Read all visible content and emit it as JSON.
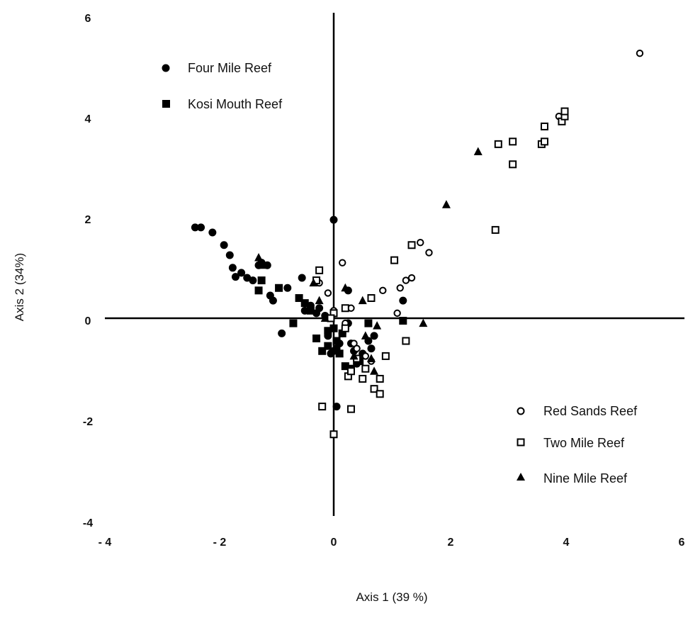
{
  "chart_data": {
    "type": "scatter",
    "xlabel": "Axis 1 (39 %)",
    "ylabel": "Axis 2 (34%)",
    "xlim": [
      -4,
      6
    ],
    "ylim": [
      -4,
      6
    ],
    "x_ticks": [
      "- 4",
      "- 2",
      "0",
      "2",
      "4",
      "6"
    ],
    "y_ticks": [
      "6",
      "4",
      "2",
      "0",
      "-2",
      "-4"
    ],
    "legend": {
      "top_left": [
        "Four Mile Reef",
        "Kosi Mouth Reef"
      ],
      "bottom_right": [
        "Red Sands Reef",
        "Two Mile Reef",
        "Nine Mile Reef"
      ]
    },
    "series": [
      {
        "name": "Four Mile Reef",
        "marker": "filled-circle",
        "points": [
          [
            -2.4,
            1.8
          ],
          [
            -2.3,
            1.8
          ],
          [
            -2.1,
            1.7
          ],
          [
            -1.9,
            1.45
          ],
          [
            -1.8,
            1.25
          ],
          [
            -1.75,
            1.0
          ],
          [
            -1.7,
            0.82
          ],
          [
            -1.6,
            0.9
          ],
          [
            -1.5,
            0.8
          ],
          [
            -1.4,
            0.75
          ],
          [
            -1.3,
            1.05
          ],
          [
            -1.25,
            1.1
          ],
          [
            -1.15,
            1.05
          ],
          [
            -1.1,
            0.45
          ],
          [
            -1.05,
            0.35
          ],
          [
            -0.9,
            -0.3
          ],
          [
            -0.8,
            0.6
          ],
          [
            -0.55,
            0.8
          ],
          [
            -0.5,
            0.15
          ],
          [
            -0.4,
            0.25
          ],
          [
            -0.3,
            0.1
          ],
          [
            -0.25,
            0.2
          ],
          [
            -0.15,
            0.05
          ],
          [
            -0.1,
            -0.35
          ],
          [
            -0.05,
            -0.7
          ],
          [
            0.0,
            -0.65
          ],
          [
            0.0,
            1.95
          ],
          [
            0.05,
            -0.6
          ],
          [
            0.1,
            -0.5
          ],
          [
            0.15,
            -0.3
          ],
          [
            0.2,
            -0.2
          ],
          [
            0.25,
            -0.1
          ],
          [
            0.3,
            -0.5
          ],
          [
            0.35,
            -0.65
          ],
          [
            0.4,
            -0.9
          ],
          [
            0.5,
            -0.7
          ],
          [
            0.6,
            -0.45
          ],
          [
            0.65,
            -0.6
          ],
          [
            0.7,
            -0.35
          ],
          [
            0.05,
            -1.75
          ],
          [
            0.25,
            0.55
          ],
          [
            1.2,
            0.35
          ]
        ]
      },
      {
        "name": "Kosi Mouth Reef",
        "marker": "filled-square",
        "points": [
          [
            -1.3,
            0.55
          ],
          [
            -1.25,
            0.75
          ],
          [
            -0.95,
            0.6
          ],
          [
            -0.7,
            -0.1
          ],
          [
            -0.6,
            0.4
          ],
          [
            -0.5,
            0.3
          ],
          [
            -0.4,
            0.15
          ],
          [
            -0.3,
            -0.4
          ],
          [
            -0.2,
            -0.65
          ],
          [
            -0.1,
            -0.25
          ],
          [
            0.0,
            -0.2
          ],
          [
            0.05,
            -0.45
          ],
          [
            0.1,
            -0.7
          ],
          [
            0.2,
            -0.95
          ],
          [
            0.3,
            -1.0
          ],
          [
            0.45,
            -0.85
          ],
          [
            0.6,
            -0.1
          ],
          [
            1.2,
            -0.05
          ],
          [
            -0.1,
            -0.55
          ],
          [
            0.15,
            -0.3
          ]
        ]
      },
      {
        "name": "Red Sands Reef",
        "marker": "open-circle",
        "points": [
          [
            5.3,
            5.25
          ],
          [
            3.9,
            4.0
          ],
          [
            -0.25,
            0.7
          ],
          [
            -0.1,
            0.5
          ],
          [
            0.0,
            0.15
          ],
          [
            0.15,
            1.1
          ],
          [
            0.2,
            -0.1
          ],
          [
            0.3,
            0.2
          ],
          [
            0.35,
            -0.5
          ],
          [
            0.4,
            -0.6
          ],
          [
            0.55,
            -0.75
          ],
          [
            0.65,
            -0.85
          ],
          [
            0.85,
            0.55
          ],
          [
            1.1,
            0.1
          ],
          [
            1.15,
            0.6
          ],
          [
            1.25,
            0.75
          ],
          [
            1.35,
            0.8
          ],
          [
            1.5,
            1.5
          ],
          [
            1.65,
            1.3
          ]
        ]
      },
      {
        "name": "Two Mile Reef",
        "marker": "open-square",
        "points": [
          [
            -0.25,
            0.95
          ],
          [
            -0.3,
            0.75
          ],
          [
            -0.2,
            -1.75
          ],
          [
            0.0,
            -2.3
          ],
          [
            0.0,
            0.1
          ],
          [
            0.2,
            0.2
          ],
          [
            0.2,
            -0.2
          ],
          [
            0.25,
            -1.15
          ],
          [
            0.3,
            -1.8
          ],
          [
            0.3,
            -1.05
          ],
          [
            0.4,
            -0.8
          ],
          [
            0.5,
            -1.2
          ],
          [
            0.55,
            -1.0
          ],
          [
            0.65,
            0.4
          ],
          [
            0.7,
            -1.4
          ],
          [
            0.8,
            -1.2
          ],
          [
            0.8,
            -1.5
          ],
          [
            0.9,
            -0.75
          ],
          [
            1.05,
            1.15
          ],
          [
            1.25,
            -0.45
          ],
          [
            1.35,
            1.45
          ],
          [
            2.8,
            1.75
          ],
          [
            2.85,
            3.45
          ],
          [
            3.1,
            3.5
          ],
          [
            3.1,
            3.05
          ],
          [
            3.6,
            3.45
          ],
          [
            3.65,
            3.5
          ],
          [
            3.65,
            3.8
          ],
          [
            3.95,
            3.9
          ],
          [
            4.0,
            4.0
          ],
          [
            4.0,
            4.1
          ],
          [
            -0.05,
            0.0
          ]
        ]
      },
      {
        "name": "Nine Mile Reef",
        "marker": "filled-triangle",
        "points": [
          [
            2.5,
            3.3
          ],
          [
            1.95,
            2.25
          ],
          [
            -1.3,
            1.2
          ],
          [
            -1.25,
            1.05
          ],
          [
            -0.35,
            0.7
          ],
          [
            -0.25,
            0.35
          ],
          [
            0.2,
            0.6
          ],
          [
            0.5,
            0.35
          ],
          [
            0.55,
            -0.35
          ],
          [
            0.65,
            -0.8
          ],
          [
            0.7,
            -1.05
          ],
          [
            0.75,
            -0.15
          ],
          [
            1.55,
            -0.1
          ],
          [
            0.35,
            -0.75
          ],
          [
            -0.15,
            0.0
          ]
        ]
      }
    ]
  }
}
